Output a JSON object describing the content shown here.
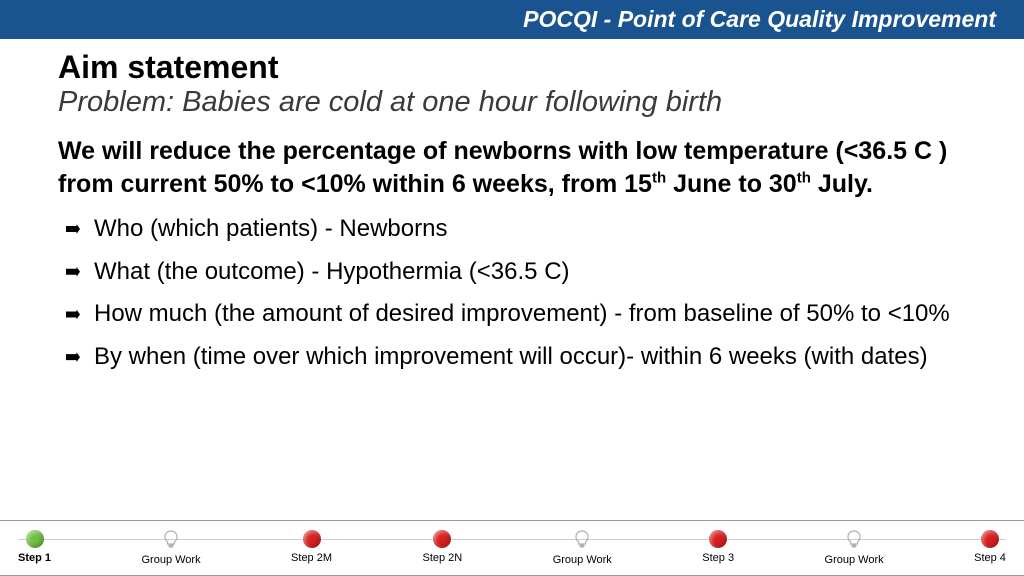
{
  "header": {
    "title": "POCQI - Point of Care Quality Improvement",
    "background_color": "#1a5490",
    "text_color": "#ffffff",
    "fontsize": 23
  },
  "content": {
    "title": "Aim statement",
    "title_fontsize": 32,
    "subtitle": "Problem: Babies are cold at one hour following birth",
    "subtitle_fontsize": 29,
    "subtitle_color": "#3a3a3a",
    "aim_prefix": "We will reduce the percentage of newborns with low temperature (<36.5 C ) from current 50% to <10% within 6 weeks, from 15",
    "aim_sup1": "th",
    "aim_mid": " June to 30",
    "aim_sup2": "th",
    "aim_suffix": " July.",
    "aim_fontsize": 25,
    "bullets": [
      "Who (which patients) - Newborns",
      "What (the outcome) - Hypothermia (<36.5 C)",
      "How much (the amount of desired improvement) - from baseline of 50% to <10%",
      "By when (time over which improvement will occur)- within 6 weeks (with dates)"
    ],
    "bullet_fontsize": 24
  },
  "footer": {
    "line_color": "#cccccc",
    "dot_green": "#6dbf3f",
    "dot_red": "#d82020",
    "bulb_color": "#b0b0b0",
    "items": [
      {
        "label": "Step 1",
        "type": "dot",
        "color": "#6dbf3f",
        "bold": true
      },
      {
        "label": "Group Work",
        "type": "bulb",
        "bold": false
      },
      {
        "label": "Step 2M",
        "type": "dot",
        "color": "#d82020",
        "bold": false
      },
      {
        "label": "Step 2N",
        "type": "dot",
        "color": "#d82020",
        "bold": false
      },
      {
        "label": "Group Work",
        "type": "bulb",
        "bold": false
      },
      {
        "label": "Step 3",
        "type": "dot",
        "color": "#d82020",
        "bold": false
      },
      {
        "label": "Group Work",
        "type": "bulb",
        "bold": false
      },
      {
        "label": "Step 4",
        "type": "dot",
        "color": "#d82020",
        "bold": false
      }
    ]
  }
}
